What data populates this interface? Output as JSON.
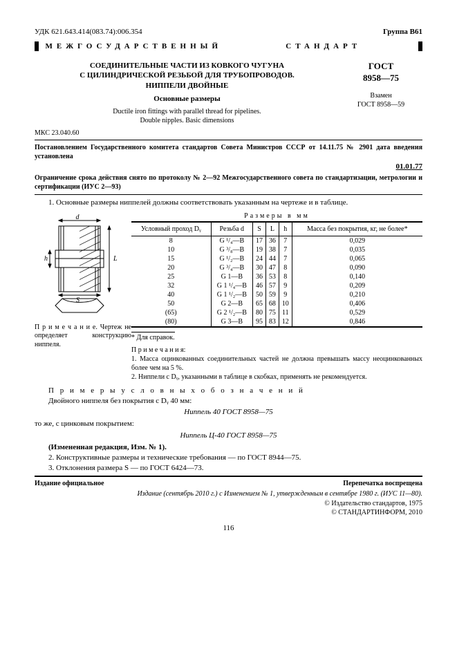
{
  "top": {
    "udk": "УДК 621.643.414(083.74):006.354",
    "group": "Группа В61"
  },
  "banner": {
    "left": "МЕЖГОСУДАРСТВЕННЫЙ",
    "right": "СТАНДАРТ"
  },
  "header": {
    "ru_line1": "СОЕДИНИТЕЛЬНЫЕ ЧАСТИ ИЗ КОВКОГО ЧУГУНА",
    "ru_line2": "С ЦИЛИНДРИЧЕСКОЙ РЕЗЬБОЙ ДЛЯ ТРУБОПРОВОДОВ.",
    "ru_line3": "НИППЕЛИ ДВОЙНЫЕ",
    "sub": "Основные размеры",
    "en_line1": "Ductile iron fittings with parallel thread for pipelines.",
    "en_line2": "Double nipples. Basic dimensions",
    "gost_label": "ГОСТ",
    "gost_num": "8958—75",
    "replaces_lbl": "Взамен",
    "replaces_val": "ГОСТ 8958—59"
  },
  "mks": "МКС 23.040.60",
  "decree": "Постановлением Государственного комитета стандартов Совета Министров СССР от 14.11.75 № 2901 дата введения установлена",
  "eff_date": "01.01.77",
  "restriction": "Ограничение срока действия снято по протоколу № 2—92 Межгосударственного совета по стандартизации, метрологии и сертификации (ИУС 2—93)",
  "para1": "1. Основные размеры ниппелей должны соответствовать указанным на чертеже и в таблице.",
  "table": {
    "caption": "Размеры в мм",
    "headers": [
      "Условный проход Dᵧ",
      "Резьба d",
      "S",
      "L",
      "h",
      "Масса без покрытия, кг, не более*"
    ],
    "rows": [
      [
        "8",
        "G ¹/₄—В",
        "17",
        "36",
        "7",
        "0,029"
      ],
      [
        "10",
        "G ³/₈—В",
        "19",
        "38",
        "7",
        "0,035"
      ],
      [
        "15",
        "G ¹/₂—В",
        "24",
        "44",
        "7",
        "0,065"
      ],
      [
        "20",
        "G ³/₄—В",
        "30",
        "47",
        "8",
        "0,090"
      ],
      [
        "25",
        "G 1—В",
        "36",
        "53",
        "8",
        "0,140"
      ],
      [
        "32",
        "G 1 ¹/₄—В",
        "46",
        "57",
        "9",
        "0,209"
      ],
      [
        "40",
        "G 1 ¹/₂—В",
        "50",
        "59",
        "9",
        "0,210"
      ],
      [
        "50",
        "G 2—В",
        "65",
        "68",
        "10",
        "0,406"
      ],
      [
        "(65)",
        "G 2 ¹/₂—В",
        "80",
        "75",
        "11",
        "0,529"
      ],
      [
        "(80)",
        "G 3—В",
        "95",
        "83",
        "12",
        "0,846"
      ]
    ],
    "footnote": "* Для справок."
  },
  "fig_note": "П р и м е ч а н и е. Чертеж не определяет конструкцию ниппеля.",
  "table_notes": {
    "head": "П р и м е ч а н и я:",
    "n1": "1. Масса оцинкованных соединительных частей не должна превышать массу неоцинкованных более чем на 5 %.",
    "n2": "2. Ниппели с Dᵧ, указанными в таблице в скобках, применять не рекомендуется."
  },
  "examples": {
    "intro": "П р и м е р ы  у с л о в н ы х  о б о з н а ч е н и й",
    "line1": "Двойного ниппеля без покрытия с Dᵧ 40 мм:",
    "ex1": "Ниппель 40 ГОСТ 8958—75",
    "line2": "то же, с цинковым покрытием:",
    "ex2": "Ниппель Ц-40 ГОСТ 8958—75"
  },
  "amend": "(Измененная редакция, Изм. № 1).",
  "para2": "2. Конструктивные размеры и технические требования — по ГОСТ 8944—75.",
  "para3": "3. Отклонения размера S — по ГОСТ 6424—73.",
  "footer": {
    "left": "Издание официальное",
    "right": "Перепечатка воспрещена",
    "edition": "Издание (сентябрь 2010 г.) с Изменением № 1, утвержденным в сентябре 1980 г. (ИУС 11—80).",
    "c1": "© Издательство стандартов, 1975",
    "c2": "© СТАНДАРТИНФОРМ, 2010"
  },
  "pagenum": "116",
  "fig_labels": {
    "d": "d",
    "h": "h",
    "S": "S",
    "L": "L"
  }
}
